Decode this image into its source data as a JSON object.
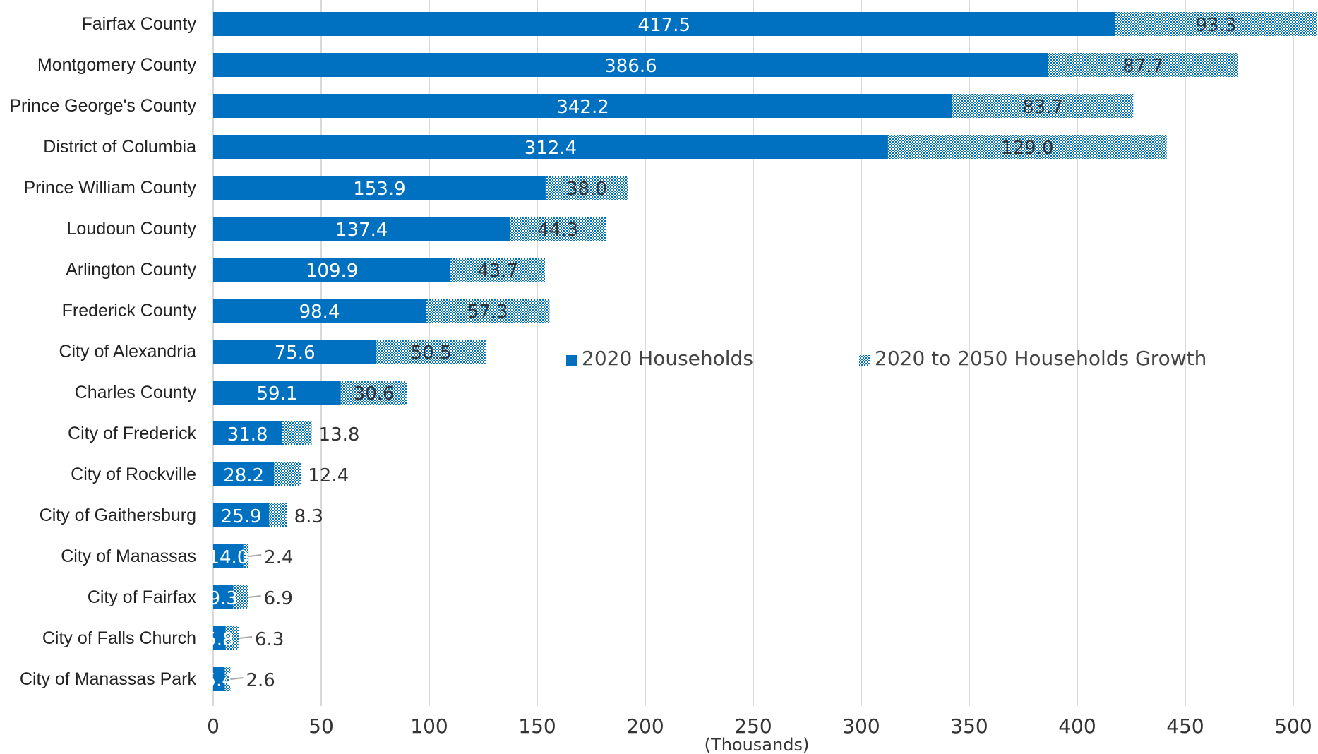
{
  "chart_data": {
    "type": "bar",
    "orientation": "horizontal",
    "stacked": true,
    "categories": [
      "Fairfax County",
      "Montgomery County",
      "Prince George's County",
      "District of Columbia",
      "Prince William County",
      "Loudoun County",
      "Arlington County",
      "Frederick County",
      "City of Alexandria",
      "Charles County",
      "City of Frederick",
      "City of Rockville",
      "City of Gaithersburg",
      "City of Manassas",
      "City of Fairfax",
      "City of Falls Church",
      "City of Manassas Park"
    ],
    "series": [
      {
        "name": "2020 Households",
        "color": "#0070c0",
        "values": [
          417.5,
          386.6,
          342.2,
          312.4,
          153.9,
          137.4,
          109.9,
          98.4,
          75.6,
          59.1,
          31.8,
          28.2,
          25.9,
          14.0,
          9.3,
          5.8,
          5.4
        ],
        "labels": [
          "417.5",
          "386.6",
          "342.2",
          "312.4",
          "153.9",
          "137.4",
          "109.9",
          "98.4",
          "75.6",
          "59.1",
          "31.8",
          "28.2",
          "25.9",
          "14.0",
          "9.3",
          "5.8",
          "5.4"
        ]
      },
      {
        "name": "2020 to 2050 Households Growth",
        "color": "#0070c0",
        "pattern": "dotted",
        "values": [
          93.3,
          87.7,
          83.7,
          129.0,
          38.0,
          44.3,
          43.7,
          57.3,
          50.5,
          30.6,
          13.8,
          12.4,
          8.3,
          2.4,
          6.9,
          6.3,
          2.6
        ],
        "labels": [
          "93.3",
          "87.7",
          "83.7",
          "129.0",
          "38.0",
          "44.3",
          "43.7",
          "57.3",
          "50.5",
          "30.6",
          "13.8",
          "12.4",
          "8.3",
          "2.4",
          "6.9",
          "6.3",
          "2.6"
        ]
      }
    ],
    "x_ticks": [
      "0",
      "50",
      "100",
      "150",
      "200",
      "250",
      "300",
      "350",
      "400",
      "450",
      "500"
    ],
    "xlabel": "(Thousands)",
    "xlim": [
      0,
      500
    ],
    "grid": "vertical",
    "legend": {
      "placement": "center-right"
    },
    "title": ""
  }
}
